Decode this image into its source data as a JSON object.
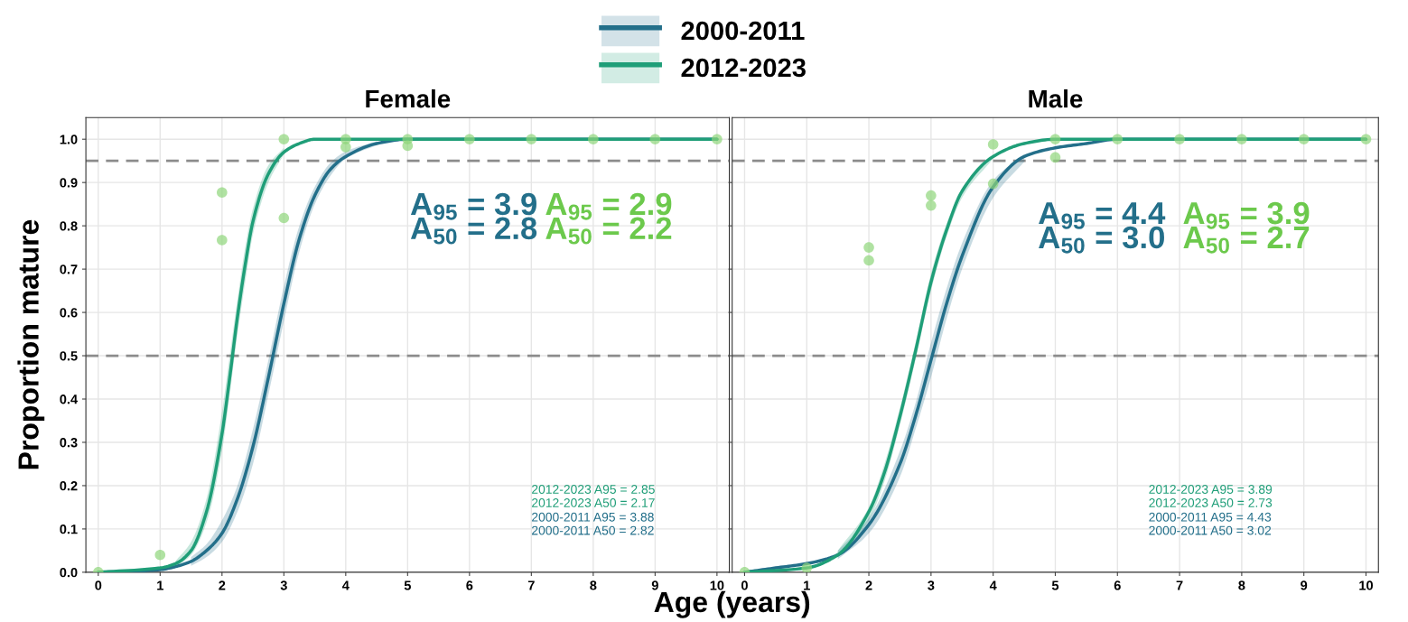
{
  "chart_data": [
    {
      "type": "line",
      "title": "Female",
      "xlabel": "Age (years)",
      "ylabel": "Proportion mature",
      "xlim": [
        -0.2,
        10.2
      ],
      "xticks": [
        0,
        1,
        2,
        3,
        4,
        5,
        6,
        7,
        8,
        9,
        10
      ],
      "ylim": [
        0,
        1.05
      ],
      "yticks": [
        {
          "value": 0,
          "label": "0.0"
        },
        {
          "value": 0.1,
          "label": "0.1"
        },
        {
          "value": 0.2,
          "label": "0.2"
        },
        {
          "value": 0.3,
          "label": "0.3"
        },
        {
          "value": 0.4,
          "label": "0.4"
        },
        {
          "value": 0.5,
          "label": "0.5"
        },
        {
          "value": 0.6,
          "label": "0.6"
        },
        {
          "value": 0.7,
          "label": "0.7"
        },
        {
          "value": 0.8,
          "label": "0.8"
        },
        {
          "value": 0.9,
          "label": "0.9"
        },
        {
          "value": 1,
          "label": "1.0"
        }
      ],
      "grid": true,
      "legend": "top",
      "marker": "none",
      "line_style": "solid",
      "ref_lines": [
        {
          "axis": "y",
          "value": 0.95,
          "color": "#8c8c8c",
          "line_style": "dashed"
        },
        {
          "axis": "y",
          "value": 0.5,
          "color": "#8c8c8c",
          "line_style": "dashed"
        }
      ],
      "series": [
        {
          "name": "2000-2011",
          "color": "#236f8a",
          "x": [
            0,
            0.5,
            1,
            1.25,
            1.5,
            1.75,
            2,
            2.25,
            2.5,
            2.75,
            3,
            3.25,
            3.5,
            3.75,
            4,
            4.5,
            5,
            6,
            10
          ],
          "values": [
            0.0,
            0.002,
            0.006,
            0.013,
            0.025,
            0.05,
            0.09,
            0.17,
            0.29,
            0.45,
            0.62,
            0.77,
            0.87,
            0.93,
            0.96,
            0.99,
            1.0,
            1.0,
            1.0
          ],
          "lower": [
            null,
            null,
            null,
            null,
            0.015,
            0.035,
            0.07,
            0.14,
            0.25,
            0.41,
            0.58,
            0.74,
            0.85,
            0.915,
            0.955,
            0.986,
            null,
            null,
            null
          ],
          "upper": [
            null,
            null,
            null,
            null,
            0.035,
            0.065,
            0.12,
            0.2,
            0.33,
            0.49,
            0.66,
            0.8,
            0.89,
            0.945,
            0.972,
            0.995,
            null,
            null,
            null
          ]
        },
        {
          "name": "2012-2023",
          "color": "#1f9e78",
          "x": [
            0,
            1,
            1.25,
            1.5,
            1.75,
            2,
            2.125,
            2.25,
            2.375,
            2.5,
            2.75,
            3,
            3.25,
            3.5,
            4,
            10
          ],
          "values": [
            0.0,
            0.01,
            0.02,
            0.05,
            0.14,
            0.32,
            0.45,
            0.59,
            0.71,
            0.81,
            0.92,
            0.97,
            0.99,
            1.0,
            1.0,
            1.0
          ],
          "lower": [
            null,
            null,
            0.012,
            0.04,
            0.115,
            0.28,
            0.41,
            0.55,
            0.67,
            0.78,
            0.9,
            0.965,
            null,
            null,
            null,
            null
          ],
          "upper": [
            null,
            null,
            0.026,
            0.07,
            0.17,
            0.37,
            0.5,
            0.63,
            0.75,
            0.84,
            0.94,
            0.98,
            null,
            null,
            null,
            null
          ]
        },
        {
          "type": "scatter",
          "marker": "circle",
          "color": "#8fd67a",
          "x": [
            0,
            1,
            2,
            2,
            3,
            3,
            4,
            4,
            5,
            5,
            6,
            7,
            8,
            9,
            10
          ],
          "values": [
            0,
            0.04,
            0.877,
            0.767,
            1.0,
            0.818,
            1.0,
            0.982,
            1.0,
            0.985,
            1.0,
            1.0,
            1.0,
            1.0,
            1.0
          ]
        }
      ],
      "annotations": [
        "A$_{95}$ = 3.9",
        "A$_{50}$ = 2.8",
        "A$_{95}$ = 2.9",
        "A$_{50}$ = 2.2",
        "2012-2023 A95 = 2.85",
        "2012-2023 A50 = 2.17",
        "2000-2011 A95 = 3.88",
        "2000-2011 A50 = 2.82"
      ]
    },
    {
      "type": "line",
      "title": "Male",
      "xlim": [
        -0.2,
        10.2
      ],
      "xticks": [
        0,
        1,
        2,
        3,
        4,
        5,
        6,
        7,
        8,
        9,
        10
      ],
      "ylim": [
        0,
        1.05
      ],
      "yticks": [
        0,
        0.1,
        0.2,
        0.3,
        0.4,
        0.5,
        0.6,
        0.7,
        0.8,
        0.9,
        1
      ],
      "tick_labels": "x",
      "grid": true,
      "marker": "none",
      "line_style": "solid",
      "ref_lines": [
        {
          "axis": "y",
          "value": 0.95,
          "color": "#8c8c8c",
          "line_style": "dashed"
        },
        {
          "axis": "y",
          "value": 0.5,
          "color": "#8c8c8c",
          "line_style": "dashed"
        }
      ],
      "series": [
        {
          "color": "#236f8a",
          "x": [
            0,
            0.5,
            1,
            1.5,
            2,
            2.5,
            2.75,
            3,
            3.25,
            3.5,
            4,
            4.5,
            5,
            5.5,
            6,
            7,
            10
          ],
          "values": [
            0.0,
            0.01,
            0.02,
            0.04,
            0.11,
            0.25,
            0.36,
            0.49,
            0.62,
            0.73,
            0.89,
            0.96,
            0.98,
            0.99,
            1.0,
            1.0,
            1.0
          ],
          "lower": [
            null,
            null,
            null,
            0.03,
            0.09,
            0.22,
            0.33,
            0.45,
            0.585,
            0.7,
            0.865,
            0.948,
            null,
            null,
            null,
            null,
            null
          ],
          "upper": [
            null,
            null,
            null,
            0.05,
            0.125,
            0.28,
            0.39,
            0.53,
            0.655,
            0.76,
            0.905,
            0.965,
            null,
            null,
            null,
            null,
            null
          ]
        },
        {
          "color": "#1f9e78",
          "x": [
            0,
            1,
            1.5,
            2,
            2.25,
            2.5,
            2.75,
            3,
            3.25,
            3.5,
            4,
            4.5,
            5,
            6,
            10
          ],
          "values": [
            0.0,
            0.01,
            0.04,
            0.14,
            0.23,
            0.36,
            0.51,
            0.67,
            0.79,
            0.88,
            0.96,
            0.99,
            1.0,
            1.0,
            1.0
          ],
          "lower": [
            null,
            null,
            0.033,
            0.12,
            0.21,
            0.34,
            0.49,
            0.65,
            0.775,
            0.865,
            0.955,
            null,
            null,
            null,
            null
          ],
          "upper": [
            null,
            null,
            0.05,
            0.15,
            0.25,
            0.38,
            0.53,
            0.69,
            0.805,
            0.887,
            0.965,
            null,
            null,
            null,
            null
          ]
        },
        {
          "type": "scatter",
          "marker": "circle",
          "color": "#8fd67a",
          "x": [
            0,
            1,
            2,
            2,
            3,
            3,
            4,
            4,
            5,
            5,
            6,
            7,
            8,
            9,
            10
          ],
          "values": [
            0,
            0.01,
            0.75,
            0.72,
            0.87,
            0.847,
            0.988,
            0.897,
            1.0,
            0.958,
            1.0,
            1.0,
            1.0,
            1.0,
            1.0
          ]
        }
      ],
      "annotations": [
        "A$_{95}$ = 4.4",
        "A$_{50}$ = 3.0",
        "A$_{95}$ = 3.9",
        "A$_{50}$ = 2.7",
        "2012-2023 A95 = 3.89",
        "2012-2023 A50 = 2.73",
        "2000-2011 A95 = 4.43",
        "2000-2011 A50 = 3.02"
      ]
    }
  ]
}
